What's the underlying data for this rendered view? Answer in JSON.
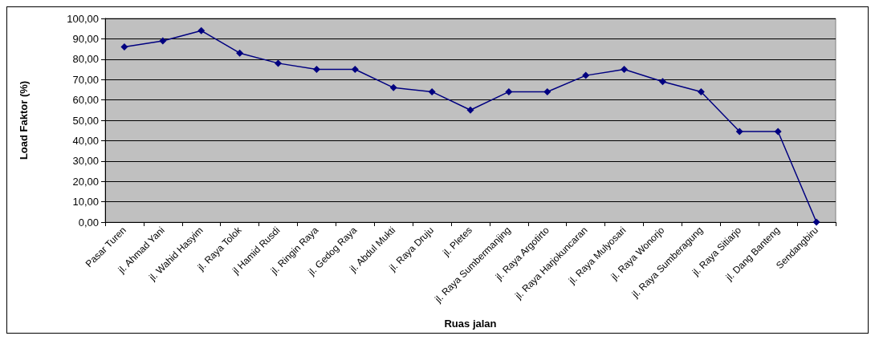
{
  "chart_data": {
    "type": "line",
    "xlabel": "Ruas jalan",
    "ylabel": "Load Faktor (%)",
    "categories": [
      "Pasar Turen",
      "jl. Ahmad Yani",
      "jl. Wahid Hasyim",
      "jl. Raya Tolok",
      "jl Hamid Rusdi",
      "jl. Ringin Raya",
      "jl. Gedog Raya",
      "jl. Abdul Mukti",
      "jl. Raya Druju",
      "jl. Pletes",
      "jl. Raya Sumbermanjing",
      "jl. Raya Argotirto",
      "jl. Raya Harjokuncaran",
      "jl. Raya Mulyosari",
      "jl. Raya Wonorjo",
      "jl. Raya Sumberagung",
      "jl. Raya Sitiarjo",
      "jl. Dang Banteng",
      "Sendangbiru"
    ],
    "series": [
      {
        "color": "#000080",
        "values": [
          86,
          89,
          94,
          83,
          78,
          75,
          75,
          66,
          64,
          55,
          64,
          64,
          72,
          75,
          69,
          64,
          44.5,
          44.5,
          0
        ]
      }
    ],
    "ylim": [
      0,
      100
    ],
    "yticks": [
      {
        "value": 0,
        "label": "0,00"
      },
      {
        "value": 10,
        "label": "10,00"
      },
      {
        "value": 20,
        "label": "20,00"
      },
      {
        "value": 30,
        "label": "30,00"
      },
      {
        "value": 40,
        "label": "40,00"
      },
      {
        "value": 50,
        "label": "50,00"
      },
      {
        "value": 60,
        "label": "60,00"
      },
      {
        "value": 70,
        "label": "70,00"
      },
      {
        "value": 80,
        "label": "80,00"
      },
      {
        "value": 90,
        "label": "90,00"
      },
      {
        "value": 100,
        "label": "100,00"
      }
    ],
    "grid": "y",
    "marker": "diamond",
    "line_style": "solid"
  }
}
